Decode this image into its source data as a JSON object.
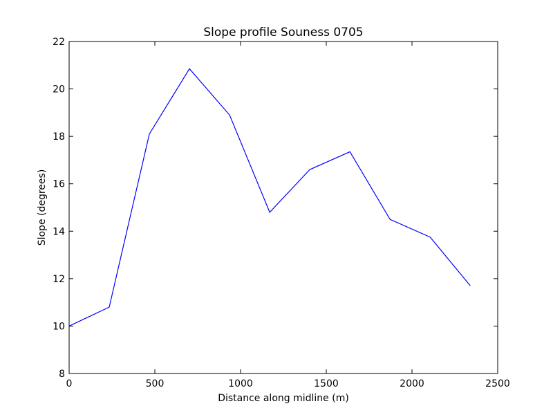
{
  "chart_data": {
    "type": "line",
    "title": "Slope profile Souness 0705",
    "xlabel": "Distance along midline (m)",
    "ylabel": "Slope (degrees)",
    "xlim": [
      0,
      2500
    ],
    "ylim": [
      8,
      22
    ],
    "xticks": [
      0,
      500,
      1000,
      1500,
      2000,
      2500
    ],
    "yticks": [
      8,
      10,
      12,
      14,
      16,
      18,
      20,
      22
    ],
    "grid": false,
    "series": [
      {
        "color": "#0000ff",
        "x": [
          0,
          234,
          468,
          702,
          936,
          1170,
          1404,
          1638,
          1872,
          2106,
          2340
        ],
        "y": [
          10.0,
          10.8,
          18.1,
          20.85,
          18.9,
          14.8,
          16.6,
          17.35,
          14.5,
          13.75,
          11.7
        ]
      }
    ]
  }
}
